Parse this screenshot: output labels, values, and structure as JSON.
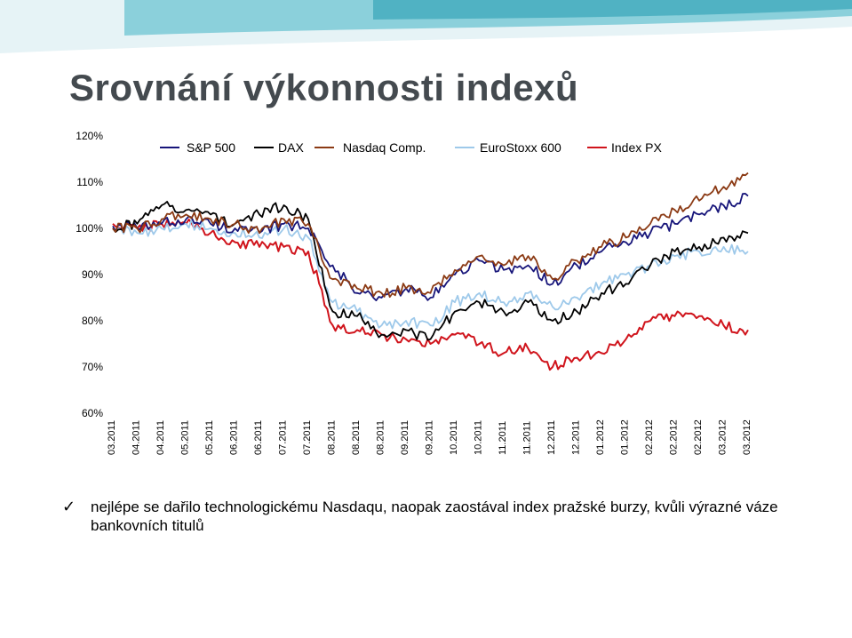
{
  "title": "Srovnání výkonnosti  indexů",
  "bullet": {
    "text": "nejlépe se dařilo technologickému Nasdaqu, naopak zaostával index pražské burzy, kvůli výrazné váze bankovních titulů"
  },
  "colors": {
    "sp500": "#17157a",
    "dax": "#000000",
    "nasdaq": "#8b3a14",
    "eurostoxx": "#9ec9ea",
    "px": "#d0141c",
    "title": "#444a4f",
    "band_light": "#e6f3f6",
    "band_accent": "#3fb3c4"
  },
  "chart_data": {
    "type": "line",
    "title": "",
    "xlabel": "",
    "ylabel": "",
    "ylim": [
      60,
      120
    ],
    "y_ticks": [
      60,
      70,
      80,
      90,
      100,
      110,
      120
    ],
    "y_tick_labels": [
      "60%",
      "70%",
      "80%",
      "90%",
      "100%",
      "110%",
      "120%"
    ],
    "x_tick_labels": [
      "03.2011",
      "04.2011",
      "04.2011",
      "05.2011",
      "05.2011",
      "06.2011",
      "06.2011",
      "07.2011",
      "07.2011",
      "08.2011",
      "08.2011",
      "08.2011",
      "09.2011",
      "09.2011",
      "10.2011",
      "10.2011",
      "11.2011",
      "11.2011",
      "12.2011",
      "12.2011",
      "01.2012",
      "01.2012",
      "02.2012",
      "02.2012",
      "02.2012",
      "03.2012",
      "03.2012"
    ],
    "n_points": 27,
    "legend": [
      "S&P 500",
      "DAX",
      "Nasdaq Comp.",
      "EuroStoxx 600",
      "Index PX"
    ],
    "legend_position": "top",
    "series": [
      {
        "name": "S&P 500",
        "values": [
          100.5,
          100,
          101,
          102,
          101,
          100,
          99,
          101,
          100,
          92,
          86,
          85,
          87,
          85,
          90,
          93,
          91,
          92,
          88,
          92,
          95,
          97,
          99,
          101,
          103,
          105,
          107
        ]
      },
      {
        "name": "DAX",
        "values": [
          100,
          101,
          105,
          104,
          103,
          101,
          103,
          105,
          102,
          82,
          81,
          77,
          78,
          76,
          82,
          84,
          82,
          84,
          80,
          82,
          86,
          88,
          92,
          95,
          96,
          98,
          99
        ]
      },
      {
        "name": "Nasdaq Comp.",
        "values": [
          100,
          100,
          102,
          103,
          102,
          101,
          99,
          102,
          101,
          89,
          87,
          86,
          87,
          86,
          91,
          94,
          92,
          94,
          89,
          93,
          96,
          98,
          101,
          104,
          106,
          109,
          112
        ]
      },
      {
        "name": "EuroStoxx 600",
        "values": [
          100,
          99,
          100,
          101,
          100,
          99,
          98,
          100,
          98,
          84,
          82,
          79,
          80,
          79,
          84,
          86,
          84,
          86,
          83,
          85,
          88,
          90,
          92,
          94,
          95,
          96,
          95
        ]
      },
      {
        "name": "Index PX",
        "values": [
          101,
          100,
          101,
          101,
          99,
          97,
          96,
          96,
          95,
          79,
          78,
          77,
          76,
          75,
          77,
          75,
          73,
          74,
          70,
          72,
          73,
          76,
          80,
          81,
          81,
          79,
          78
        ]
      }
    ]
  }
}
